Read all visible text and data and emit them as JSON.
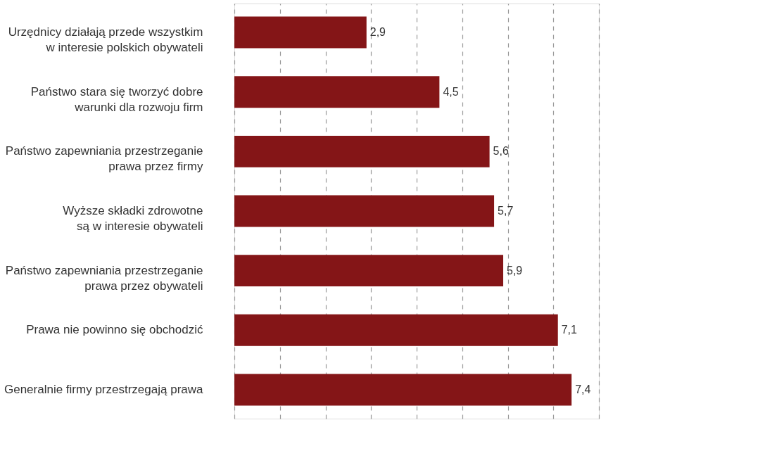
{
  "chart_data": {
    "type": "bar",
    "orientation": "horizontal",
    "categories": [
      "Urzędnicy działają przede wszystkim\nw interesie polskich obywateli",
      "Państwo stara się tworzyć dobre\nwarunki dla rozwoju firm",
      "Państwo zapewniania przestrzeganie\nprawa przez firmy",
      "Wyższe składki zdrowotne\nsą w interesie obywateli",
      "Państwo zapewniania przestrzeganie\nprawa przez obywateli",
      "Prawa nie powinno się obchodzić",
      "Generalnie firmy przestrzegają prawa"
    ],
    "values": [
      2.9,
      4.5,
      5.6,
      5.7,
      5.9,
      7.1,
      7.4
    ],
    "value_labels": [
      "2,9",
      "4,5",
      "5,6",
      "5,7",
      "5,9",
      "7,1",
      "7,4"
    ],
    "color": "#841517",
    "xlim": [
      0,
      8
    ],
    "xticks": [
      {
        "value": 0,
        "label": null
      },
      {
        "value": 1,
        "label": null
      },
      {
        "value": 2,
        "label": null
      },
      {
        "value": 3,
        "label": null
      },
      {
        "value": 4,
        "label": null
      },
      {
        "value": 5,
        "label": null
      },
      {
        "value": 6,
        "label": null
      },
      {
        "value": 7,
        "label": null
      },
      {
        "value": 8,
        "label": null
      }
    ],
    "grid": "x",
    "tick_labels": false
  }
}
